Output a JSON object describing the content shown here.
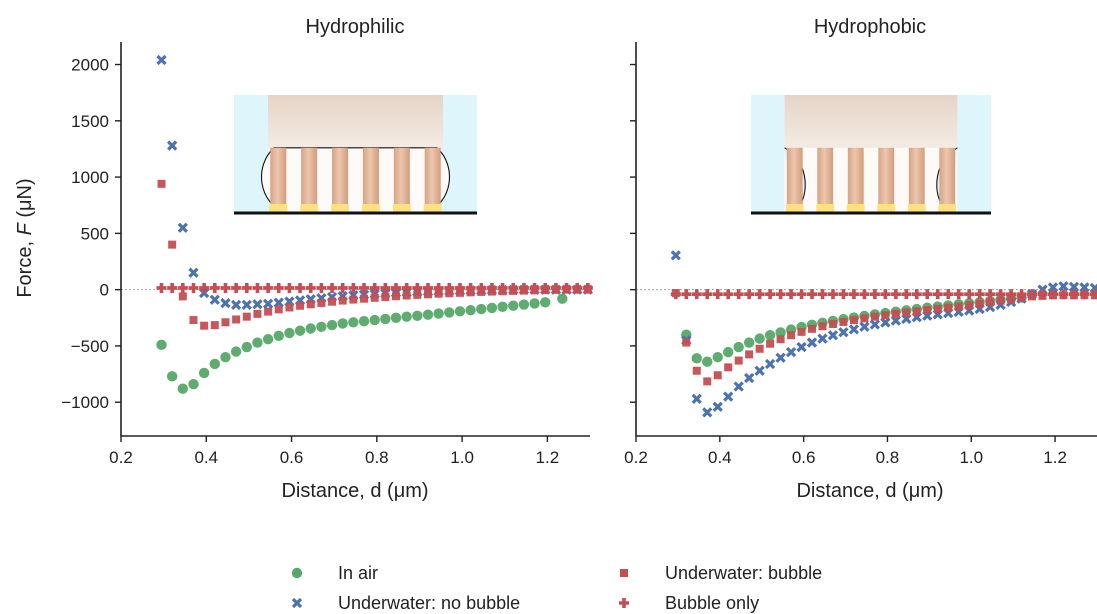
{
  "figure": {
    "ylabel_prefix": "Force, ",
    "ylabel_var": "F",
    "ylabel_unit": " (μN)"
  },
  "chart_data": [
    {
      "type": "scatter",
      "title": "Hydrophilic",
      "xlabel": "Distance, d (μm)",
      "ylabel": "Force, F (μN)",
      "xlim": [
        0.2,
        1.3
      ],
      "ylim": [
        -1300,
        2200
      ],
      "xticks": [
        0.2,
        0.4,
        0.6,
        0.8,
        1.0,
        1.2
      ],
      "xtick_labels": [
        "0.2",
        "0.4",
        "0.6",
        "0.8",
        "1.0",
        "1.2"
      ],
      "yticks": [
        -1000,
        -500,
        0,
        500,
        1000,
        1500,
        2000
      ],
      "ytick_labels": [
        "−1000",
        "−500",
        "0",
        "500",
        "1000",
        "1500",
        "2000"
      ],
      "grid": false,
      "reference_line_y": 0,
      "series": [
        {
          "name": "In air",
          "marker": "circle",
          "color": "#55a868",
          "x": [
            0.295,
            0.32,
            0.345,
            0.37,
            0.395,
            0.42,
            0.445,
            0.47,
            0.495,
            0.52,
            0.545,
            0.57,
            0.595,
            0.62,
            0.645,
            0.67,
            0.695,
            0.72,
            0.745,
            0.77,
            0.795,
            0.82,
            0.845,
            0.87,
            0.895,
            0.92,
            0.945,
            0.97,
            0.995,
            1.02,
            1.045,
            1.07,
            1.095,
            1.12,
            1.145,
            1.17,
            1.195,
            1.235
          ],
          "y": [
            -490,
            -770,
            -880,
            -840,
            -740,
            -660,
            -600,
            -550,
            -510,
            -470,
            -440,
            -410,
            -385,
            -365,
            -345,
            -330,
            -315,
            -300,
            -290,
            -280,
            -270,
            -260,
            -250,
            -240,
            -232,
            -222,
            -212,
            -202,
            -192,
            -182,
            -172,
            -162,
            -152,
            -142,
            -132,
            -122,
            -112,
            -80
          ]
        },
        {
          "name": "Underwater: no bubble",
          "marker": "x",
          "color": "#4c72b0",
          "x": [
            0.295,
            0.32,
            0.345,
            0.37,
            0.395,
            0.42,
            0.445,
            0.47,
            0.495,
            0.52,
            0.545,
            0.57,
            0.595,
            0.62,
            0.645,
            0.67,
            0.695,
            0.72,
            0.745,
            0.77,
            0.795,
            0.82,
            0.845,
            0.87,
            0.895,
            0.92,
            0.945,
            0.97,
            0.995,
            1.02,
            1.045,
            1.07,
            1.095,
            1.12,
            1.145,
            1.17,
            1.195,
            1.22,
            1.245,
            1.27,
            1.295
          ],
          "y": [
            2040,
            1280,
            550,
            150,
            -30,
            -90,
            -120,
            -135,
            -135,
            -130,
            -125,
            -115,
            -105,
            -95,
            -85,
            -75,
            -65,
            -58,
            -50,
            -44,
            -38,
            -33,
            -28,
            -24,
            -20,
            -17,
            -14,
            -12,
            -10,
            -8,
            -6,
            -4,
            -3,
            -2,
            -1,
            0,
            0,
            0,
            0,
            0,
            0
          ]
        },
        {
          "name": "Underwater: bubble",
          "marker": "square",
          "color": "#c44e52",
          "x": [
            0.295,
            0.32,
            0.345,
            0.37,
            0.395,
            0.42,
            0.445,
            0.47,
            0.495,
            0.52,
            0.545,
            0.57,
            0.595,
            0.62,
            0.645,
            0.67,
            0.695,
            0.72,
            0.745,
            0.77,
            0.795,
            0.82,
            0.845,
            0.87,
            0.895,
            0.92,
            0.945,
            0.97,
            0.995,
            1.02,
            1.045,
            1.07,
            1.095,
            1.12,
            1.145,
            1.17,
            1.195,
            1.22,
            1.245,
            1.27,
            1.295
          ],
          "y": [
            940,
            400,
            -60,
            -270,
            -320,
            -315,
            -290,
            -265,
            -240,
            -215,
            -195,
            -175,
            -158,
            -143,
            -130,
            -118,
            -107,
            -97,
            -88,
            -80,
            -72,
            -65,
            -58,
            -52,
            -46,
            -41,
            -36,
            -32,
            -28,
            -24,
            -20,
            -17,
            -14,
            -11,
            -8,
            -6,
            -4,
            -2,
            0,
            0,
            0
          ]
        },
        {
          "name": "Bubble only",
          "marker": "plus",
          "color": "#c44e52",
          "x": [
            0.295,
            0.32,
            0.345,
            0.37,
            0.395,
            0.42,
            0.445,
            0.47,
            0.495,
            0.52,
            0.545,
            0.57,
            0.595,
            0.62,
            0.645,
            0.67,
            0.695,
            0.72,
            0.745,
            0.77,
            0.795,
            0.82,
            0.845,
            0.87,
            0.895,
            0.92,
            0.945,
            0.97,
            0.995,
            1.02,
            1.045,
            1.07,
            1.095,
            1.12,
            1.145,
            1.17,
            1.195,
            1.22,
            1.245,
            1.27,
            1.295
          ],
          "y": [
            15,
            15,
            15,
            15,
            15,
            15,
            15,
            15,
            15,
            15,
            15,
            15,
            15,
            15,
            15,
            15,
            15,
            15,
            15,
            15,
            15,
            15,
            15,
            15,
            15,
            15,
            15,
            15,
            15,
            15,
            15,
            15,
            15,
            15,
            15,
            15,
            15,
            15,
            15,
            15,
            15
          ]
        }
      ]
    },
    {
      "type": "scatter",
      "title": "Hydrophobic",
      "xlabel": "Distance, d (μm)",
      "ylabel": "",
      "xlim": [
        0.2,
        1.3
      ],
      "ylim": [
        -1300,
        2200
      ],
      "xticks": [
        0.2,
        0.4,
        0.6,
        0.8,
        1.0,
        1.2
      ],
      "xtick_labels": [
        "0.2",
        "0.4",
        "0.6",
        "0.8",
        "1.0",
        "1.2"
      ],
      "yticks": [
        -1000,
        -500,
        0,
        500,
        1000,
        1500,
        2000
      ],
      "ytick_labels": [],
      "grid": false,
      "reference_line_y": 0,
      "series": [
        {
          "name": "In air",
          "marker": "circle",
          "color": "#55a868",
          "x": [
            0.32,
            0.345,
            0.37,
            0.395,
            0.42,
            0.445,
            0.47,
            0.495,
            0.52,
            0.545,
            0.57,
            0.595,
            0.62,
            0.645,
            0.67,
            0.695,
            0.72,
            0.745,
            0.77,
            0.795,
            0.82,
            0.845,
            0.87,
            0.895,
            0.92,
            0.945,
            0.97,
            0.995,
            1.02,
            1.045,
            1.07,
            1.095,
            1.12
          ],
          "y": [
            -400,
            -610,
            -640,
            -600,
            -555,
            -510,
            -470,
            -435,
            -405,
            -380,
            -355,
            -332,
            -312,
            -295,
            -278,
            -262,
            -248,
            -234,
            -220,
            -208,
            -196,
            -184,
            -172,
            -160,
            -150,
            -140,
            -130,
            -120,
            -110,
            -100,
            -90,
            -80,
            -70
          ]
        },
        {
          "name": "Underwater: no bubble",
          "marker": "x",
          "color": "#4c72b0",
          "x": [
            0.295,
            0.32,
            0.345,
            0.37,
            0.395,
            0.42,
            0.445,
            0.47,
            0.495,
            0.52,
            0.545,
            0.57,
            0.595,
            0.62,
            0.645,
            0.67,
            0.695,
            0.72,
            0.745,
            0.77,
            0.795,
            0.82,
            0.845,
            0.87,
            0.895,
            0.92,
            0.945,
            0.97,
            0.995,
            1.02,
            1.045,
            1.07,
            1.095,
            1.12,
            1.145,
            1.17,
            1.195,
            1.22,
            1.245,
            1.27,
            1.295
          ],
          "y": [
            305,
            -450,
            -970,
            -1090,
            -1040,
            -950,
            -860,
            -785,
            -720,
            -660,
            -605,
            -555,
            -510,
            -470,
            -435,
            -405,
            -378,
            -353,
            -330,
            -310,
            -292,
            -275,
            -260,
            -245,
            -232,
            -220,
            -208,
            -197,
            -186,
            -172,
            -155,
            -135,
            -110,
            -80,
            -40,
            0,
            20,
            30,
            25,
            20,
            15
          ]
        },
        {
          "name": "Underwater: bubble",
          "marker": "square",
          "color": "#c44e52",
          "x": [
            0.295,
            0.32,
            0.345,
            0.37,
            0.395,
            0.42,
            0.445,
            0.47,
            0.495,
            0.52,
            0.545,
            0.57,
            0.595,
            0.62,
            0.645,
            0.67,
            0.695,
            0.72,
            0.745,
            0.77,
            0.795,
            0.82,
            0.845,
            0.87,
            0.895,
            0.92,
            0.945,
            0.97,
            0.995,
            1.02,
            1.045,
            1.07,
            1.095,
            1.12,
            1.145,
            1.17,
            1.195,
            1.22,
            1.245,
            1.27,
            1.295
          ],
          "y": [
            -30,
            -470,
            -720,
            -815,
            -760,
            -690,
            -630,
            -575,
            -525,
            -480,
            -440,
            -405,
            -375,
            -348,
            -325,
            -305,
            -287,
            -270,
            -255,
            -240,
            -227,
            -215,
            -203,
            -192,
            -181,
            -170,
            -160,
            -150,
            -138,
            -125,
            -112,
            -98,
            -85,
            -72,
            -60,
            -55,
            -50,
            -50,
            -50,
            -50,
            -50
          ]
        },
        {
          "name": "Bubble only",
          "marker": "plus",
          "color": "#c44e52",
          "x": [
            0.295,
            0.32,
            0.345,
            0.37,
            0.395,
            0.42,
            0.445,
            0.47,
            0.495,
            0.52,
            0.545,
            0.57,
            0.595,
            0.62,
            0.645,
            0.67,
            0.695,
            0.72,
            0.745,
            0.77,
            0.795,
            0.82,
            0.845,
            0.87,
            0.895,
            0.92,
            0.945,
            0.97,
            0.995,
            1.02,
            1.045,
            1.07,
            1.095,
            1.12,
            1.145,
            1.17,
            1.195,
            1.22,
            1.245,
            1.27,
            1.295
          ],
          "y": [
            -40,
            -40,
            -40,
            -40,
            -40,
            -40,
            -40,
            -40,
            -40,
            -40,
            -40,
            -40,
            -40,
            -40,
            -40,
            -40,
            -40,
            -40,
            -40,
            -40,
            -40,
            -40,
            -40,
            -40,
            -40,
            -40,
            -40,
            -40,
            -40,
            -40,
            -40,
            -40,
            -40,
            -40,
            -40,
            -40,
            -40,
            -40,
            -40,
            -40,
            -40
          ]
        }
      ]
    }
  ],
  "legend": {
    "placement": "bottom-center",
    "items": [
      {
        "label": "In air",
        "marker": "circle",
        "color": "#55a868"
      },
      {
        "label": "Underwater: no bubble",
        "marker": "x",
        "color": "#4c72b0"
      },
      {
        "label": "Underwater: bubble",
        "marker": "square",
        "color": "#c44e52"
      },
      {
        "label": "Bubble only",
        "marker": "plus",
        "color": "#c44e52"
      }
    ]
  },
  "insets": [
    {
      "panel": "Hydrophilic",
      "wetting": "hydrophilic",
      "pillar_count": 6,
      "water_color": "#dff5fc",
      "substrate_color": "#e6d2c2",
      "pillar_color": "#e2b59a",
      "tip_color": "#fce17c"
    },
    {
      "panel": "Hydrophobic",
      "wetting": "hydrophobic",
      "pillar_count": 6,
      "water_color": "#dff5fc",
      "substrate_color": "#e6d2c2",
      "pillar_color": "#e2b59a",
      "tip_color": "#fce17c"
    }
  ]
}
